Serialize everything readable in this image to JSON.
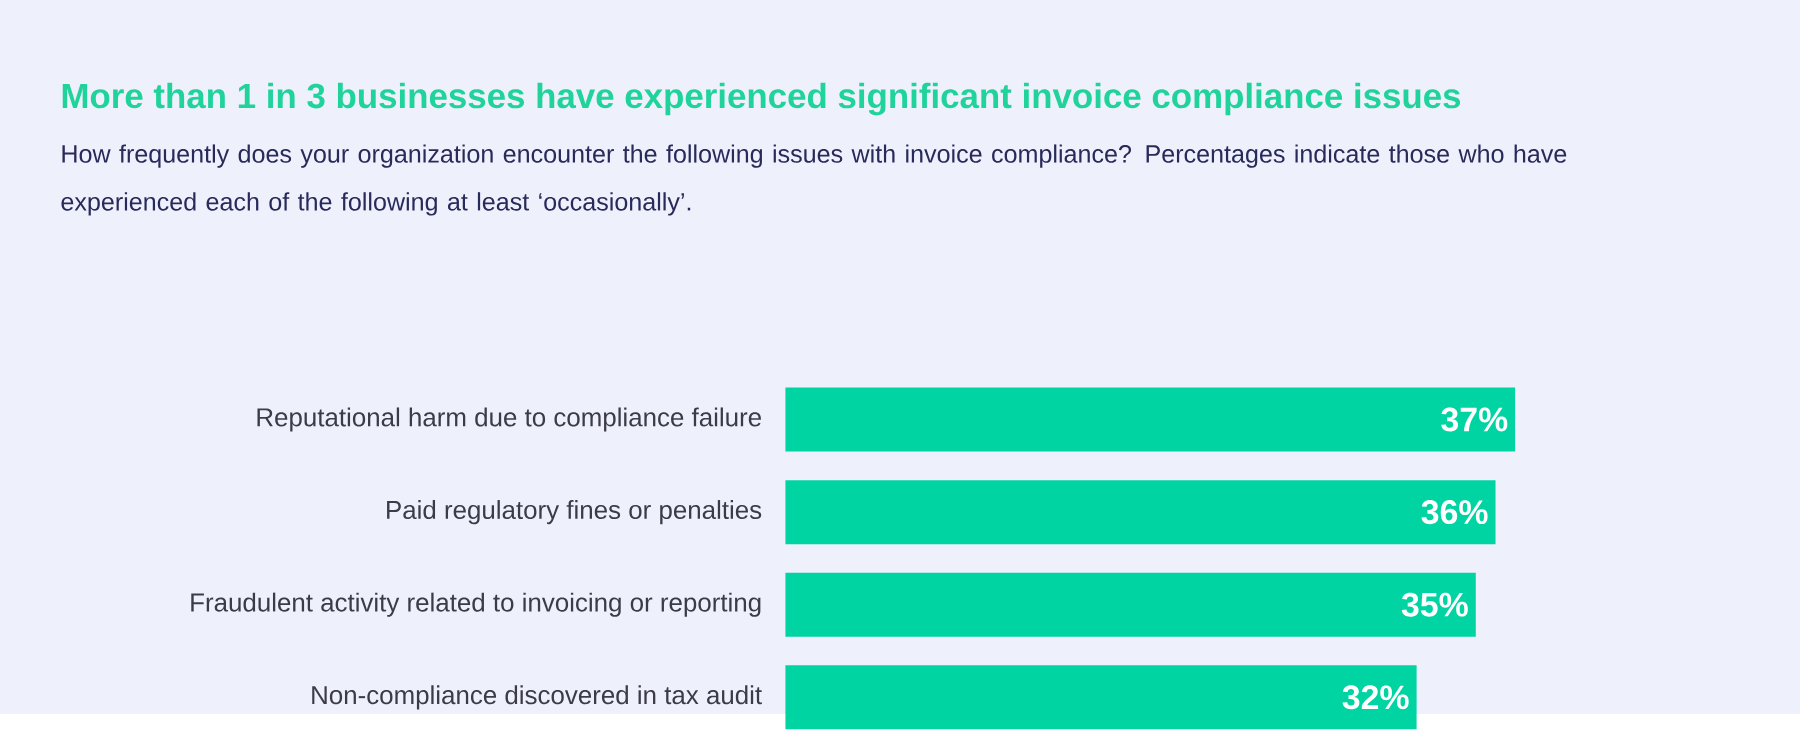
{
  "chart_data": {
    "type": "bar",
    "orientation": "horizontal",
    "title": "More than 1 in 3 businesses have experienced significant invoice compliance issues",
    "subtitle": "How frequently does your organization encounter the following issues with invoice compliance? Percentages indicate those who have experienced each of the following at least ‘occasionally’.",
    "categories": [
      "Reputational harm due to compliance failure",
      "Paid regulatory fines or penalties",
      "Fraudulent activity related to invoicing or reporting",
      "Non-compliance discovered in tax audit"
    ],
    "values": [
      37,
      36,
      35,
      32
    ],
    "value_labels": [
      "37%",
      "36%",
      "35%",
      "32%"
    ],
    "color": "#00d4a3"
  }
}
